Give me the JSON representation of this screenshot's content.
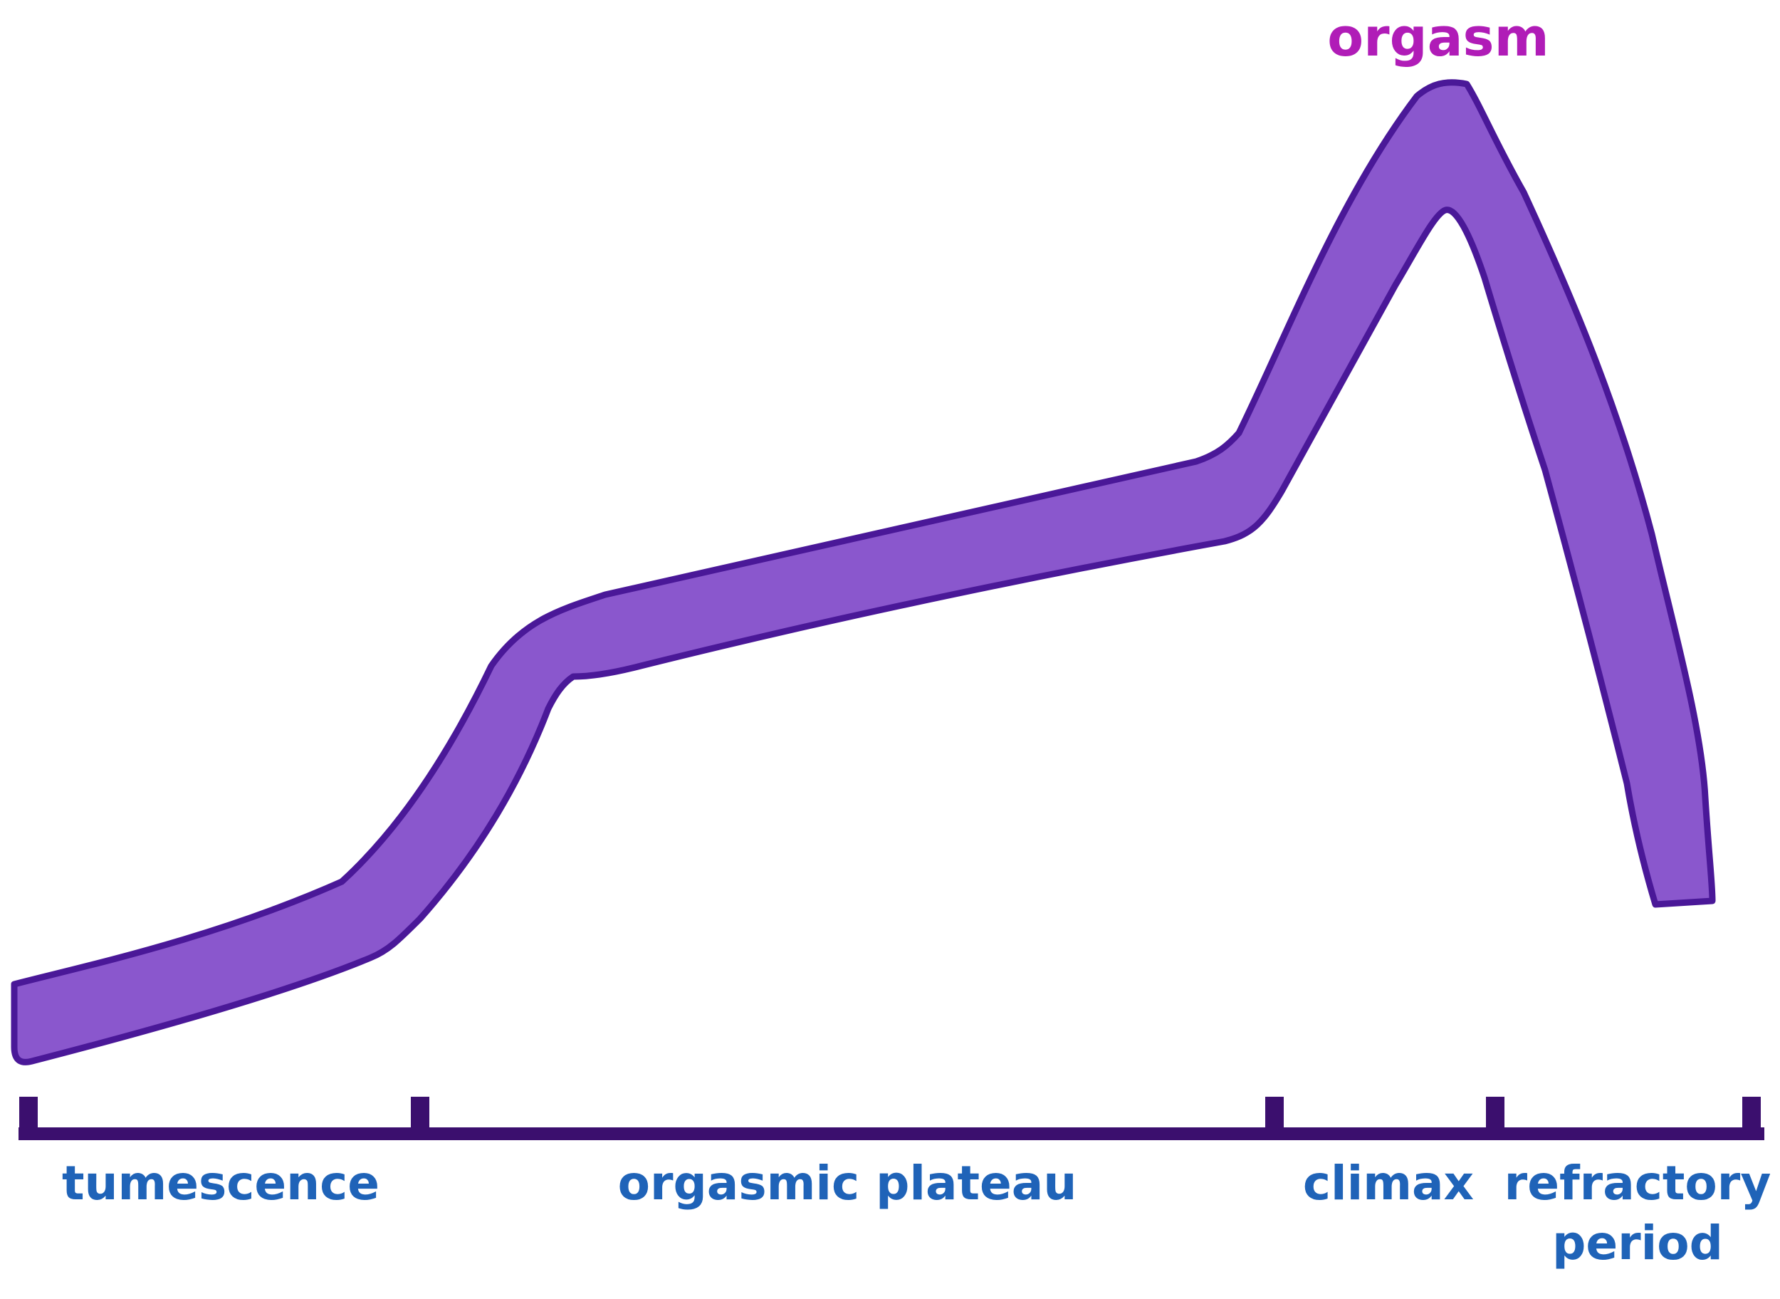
{
  "peak_label": "orgasm",
  "phases": [
    {
      "label_lines": [
        "tumescence"
      ]
    },
    {
      "label_lines": [
        "orgasmic plateau"
      ]
    },
    {
      "label_lines": [
        "climax"
      ]
    },
    {
      "label_lines": [
        "refractory",
        "period"
      ]
    }
  ],
  "colors": {
    "band_fill": "#8a57cd",
    "band_outline": "#4a1898",
    "axis": "#3b0f6e",
    "phase_text": "#1f63b8",
    "peak_text": "#b01cb7",
    "background": "#ffffff"
  }
}
